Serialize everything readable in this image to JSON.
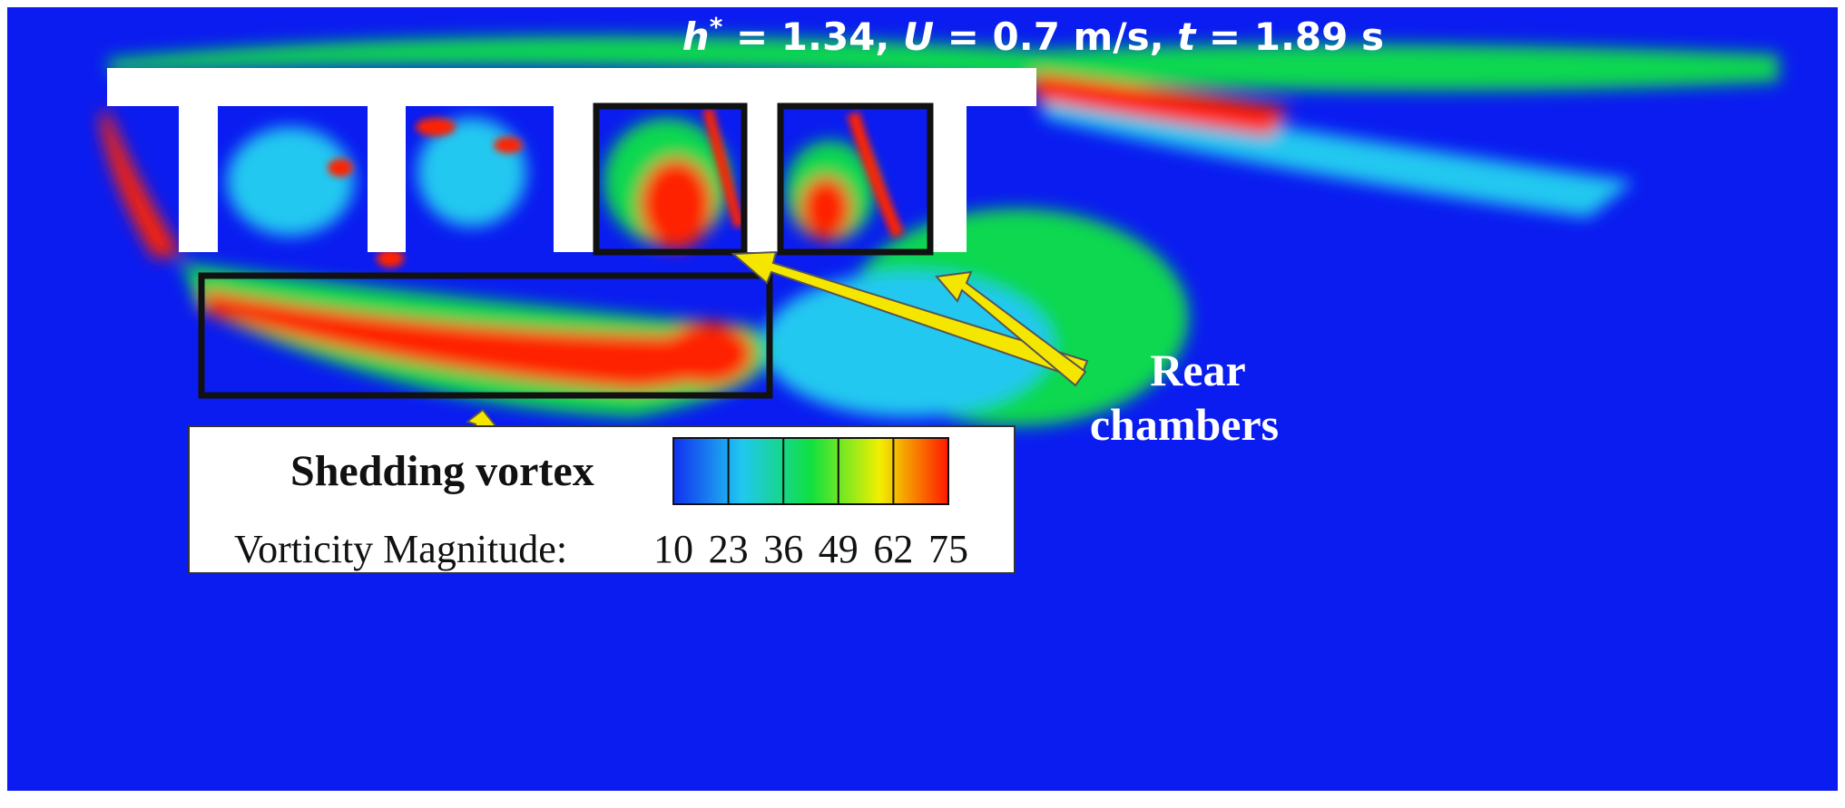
{
  "caption": [
    {
      "text": "h",
      "italic": true
    },
    {
      "text": "*",
      "sup": true
    },
    {
      "text": " = 1.34, "
    },
    {
      "text": "U",
      "italic": true
    },
    {
      "text": " = 0.7 m/s, "
    },
    {
      "text": "t",
      "italic": true
    },
    {
      "text": " = 1.89 s"
    }
  ],
  "labels": {
    "shedding": "Shedding vortex",
    "rear": [
      "Rear",
      "chambers"
    ]
  },
  "colorbar": {
    "title": "Vorticity Magnitude:",
    "ticks": [
      10,
      23,
      36,
      49,
      62,
      75
    ],
    "colors": [
      "#1030f0",
      "#20c8f0",
      "#10e040",
      "#f0f000",
      "#ff1800"
    ]
  }
}
